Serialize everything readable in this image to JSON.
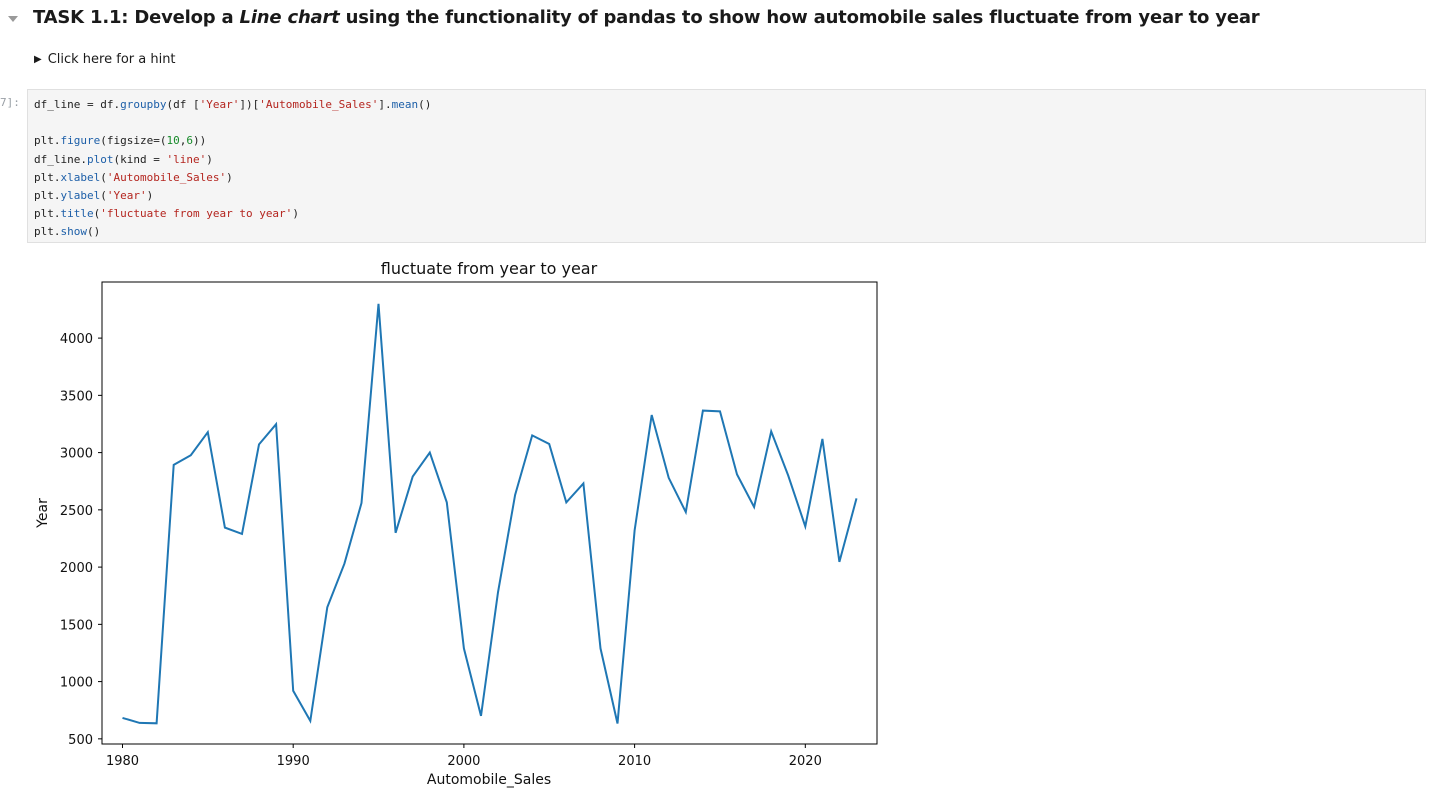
{
  "heading": {
    "prefix": "TASK 1.1: Develop a ",
    "emphasis": "Line chart",
    "suffix": " using the functionality of pandas to show how automobile sales fluctuate from year to year"
  },
  "hint": {
    "label": "Click here for a hint"
  },
  "cell": {
    "prompt": "7]:"
  },
  "code": {
    "line1": {
      "a": "df_line = df.",
      "b": "groupby",
      "c": "(df [",
      "d": "'Year'",
      "e": "])[",
      "f": "'Automobile_Sales'",
      "g": "].",
      "h": "mean",
      "i": "()"
    },
    "line3": {
      "a": "plt.",
      "b": "figure",
      "c": "(figsize=(",
      "d": "10",
      "e": ",",
      "f": "6",
      "g": "))"
    },
    "line4": {
      "a": "df_line.",
      "b": "plot",
      "c": "(kind = ",
      "d": "'line'",
      "e": ")"
    },
    "line5": {
      "a": "plt.",
      "b": "xlabel",
      "c": "(",
      "d": "'Automobile_Sales'",
      "e": ")"
    },
    "line6": {
      "a": "plt.",
      "b": "ylabel",
      "c": "(",
      "d": "'Year'",
      "e": ")"
    },
    "line7": {
      "a": "plt.",
      "b": "title",
      "c": "(",
      "d": "'fluctuate from year to year'",
      "e": ")"
    },
    "line8": {
      "a": "plt.",
      "b": "show",
      "c": "()"
    }
  },
  "colors": {
    "line": "#1f77b4",
    "code_bg": "#f5f5f5"
  },
  "chart_data": {
    "type": "line",
    "title": "fluctuate from year to year",
    "xlabel": "Automobile_Sales",
    "ylabel": "Year",
    "xlim": [
      1978.8,
      2024.2
    ],
    "ylim": [
      455,
      4490
    ],
    "xticks": [
      1980,
      1990,
      2000,
      2010,
      2020
    ],
    "yticks": [
      500,
      1000,
      1500,
      2000,
      2500,
      3000,
      3500,
      4000
    ],
    "grid": false,
    "x": [
      1980,
      1981,
      1982,
      1983,
      1984,
      1985,
      1986,
      1987,
      1988,
      1989,
      1990,
      1991,
      1992,
      1993,
      1994,
      1995,
      1996,
      1997,
      1998,
      1999,
      2000,
      2001,
      2002,
      2003,
      2004,
      2005,
      2006,
      2007,
      2008,
      2009,
      2010,
      2011,
      2012,
      2013,
      2014,
      2015,
      2016,
      2017,
      2018,
      2019,
      2020,
      2021,
      2022,
      2023
    ],
    "y": [
      683,
      639,
      636,
      2893,
      2977,
      3178,
      2345,
      2290,
      3072,
      3248,
      920,
      657,
      1650,
      2030,
      2560,
      4300,
      2300,
      2790,
      3000,
      2565,
      1290,
      700,
      1780,
      2630,
      3150,
      3075,
      2565,
      2730,
      1290,
      634,
      2320,
      3328,
      2780,
      2480,
      3367,
      3360,
      2810,
      2525,
      3185,
      2800,
      2355,
      3120,
      2045,
      2600
    ]
  }
}
